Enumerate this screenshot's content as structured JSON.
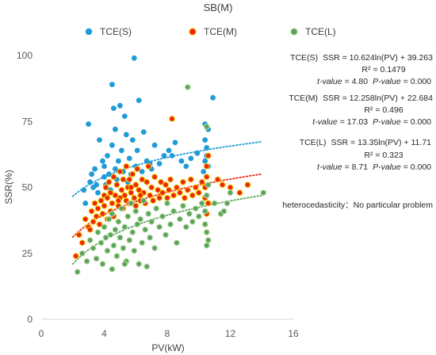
{
  "chart_data": {
    "type": "scatter",
    "title": "SB(M)",
    "xlabel": "PV(kW)",
    "ylabel": "SSR(%)",
    "xlim": [
      0,
      16
    ],
    "ylim": [
      0,
      100
    ],
    "xticks": [
      0,
      4,
      8,
      12,
      16
    ],
    "yticks": [
      0,
      25,
      50,
      75,
      100
    ],
    "grid": "none",
    "legend_position": "top",
    "series": [
      {
        "name": "TCE(S)",
        "color": "#1f9bd7",
        "trendline": {
          "a": 10.624,
          "b": 39.263,
          "x_range": [
            2.0,
            14.0
          ]
        },
        "points": [
          [
            2.7,
            49
          ],
          [
            2.8,
            44
          ],
          [
            3.0,
            74
          ],
          [
            3.1,
            52
          ],
          [
            3.2,
            55
          ],
          [
            3.3,
            50
          ],
          [
            3.4,
            57
          ],
          [
            3.5,
            51
          ],
          [
            3.6,
            48
          ],
          [
            3.7,
            68
          ],
          [
            3.8,
            45
          ],
          [
            3.9,
            60
          ],
          [
            4.0,
            54
          ],
          [
            4.0,
            58
          ],
          [
            4.1,
            51
          ],
          [
            4.2,
            62
          ],
          [
            4.3,
            55
          ],
          [
            4.4,
            49
          ],
          [
            4.5,
            89
          ],
          [
            4.5,
            66
          ],
          [
            4.6,
            80
          ],
          [
            4.7,
            72
          ],
          [
            4.7,
            57
          ],
          [
            4.8,
            53
          ],
          [
            4.9,
            60
          ],
          [
            5.0,
            81
          ],
          [
            5.1,
            64
          ],
          [
            5.2,
            56
          ],
          [
            5.3,
            77
          ],
          [
            5.4,
            70
          ],
          [
            5.5,
            52
          ],
          [
            5.6,
            61
          ],
          [
            5.7,
            55
          ],
          [
            5.8,
            68
          ],
          [
            5.9,
            99
          ],
          [
            6.0,
            58
          ],
          [
            6.1,
            64
          ],
          [
            6.2,
            83
          ],
          [
            6.4,
            56
          ],
          [
            6.5,
            71
          ],
          [
            6.7,
            60
          ],
          [
            6.9,
            59
          ],
          [
            7.0,
            57
          ],
          [
            7.2,
            66
          ],
          [
            7.5,
            59
          ],
          [
            7.8,
            62
          ],
          [
            8.1,
            64
          ],
          [
            8.3,
            62
          ],
          [
            8.5,
            67
          ],
          [
            8.9,
            60
          ],
          [
            9.2,
            58
          ],
          [
            9.5,
            61
          ],
          [
            9.9,
            63
          ],
          [
            10.3,
            56
          ],
          [
            10.4,
            74
          ],
          [
            10.4,
            68
          ],
          [
            10.5,
            65
          ],
          [
            10.5,
            62
          ],
          [
            10.6,
            72
          ],
          [
            10.9,
            84
          ],
          [
            10.6,
            58
          ],
          [
            10.4,
            60
          ]
        ]
      },
      {
        "name": "TCE(M)",
        "color": "#e8280e",
        "edge": "#ffcc00",
        "trendline": {
          "a": 12.258,
          "b": 22.684,
          "x_range": [
            2.0,
            14.0
          ]
        },
        "points": [
          [
            2.4,
            32
          ],
          [
            2.6,
            29
          ],
          [
            2.8,
            38
          ],
          [
            3.0,
            35
          ],
          [
            3.2,
            41
          ],
          [
            3.3,
            37
          ],
          [
            3.4,
            44
          ],
          [
            3.5,
            39
          ],
          [
            3.6,
            42
          ],
          [
            3.7,
            36
          ],
          [
            3.8,
            45
          ],
          [
            3.9,
            40
          ],
          [
            4.0,
            47
          ],
          [
            4.0,
            43
          ],
          [
            4.1,
            50
          ],
          [
            4.2,
            38
          ],
          [
            4.2,
            46
          ],
          [
            4.3,
            52
          ],
          [
            4.4,
            41
          ],
          [
            4.4,
            48
          ],
          [
            4.5,
            44
          ],
          [
            4.6,
            54
          ],
          [
            4.6,
            39
          ],
          [
            4.7,
            47
          ],
          [
            4.8,
            51
          ],
          [
            4.9,
            43
          ],
          [
            5.0,
            56
          ],
          [
            5.0,
            46
          ],
          [
            5.1,
            49
          ],
          [
            5.2,
            42
          ],
          [
            5.2,
            53
          ],
          [
            5.3,
            47
          ],
          [
            5.4,
            58
          ],
          [
            5.4,
            45
          ],
          [
            5.5,
            50
          ],
          [
            5.6,
            44
          ],
          [
            5.6,
            53
          ],
          [
            5.7,
            48
          ],
          [
            5.8,
            55
          ],
          [
            5.9,
            46
          ],
          [
            6.0,
            51
          ],
          [
            6.0,
            43
          ],
          [
            6.1,
            57
          ],
          [
            6.2,
            49
          ],
          [
            6.3,
            45
          ],
          [
            6.4,
            53
          ],
          [
            6.5,
            48
          ],
          [
            6.6,
            44
          ],
          [
            6.7,
            52
          ],
          [
            6.8,
            58
          ],
          [
            6.9,
            47
          ],
          [
            7.0,
            50
          ],
          [
            7.1,
            45
          ],
          [
            7.2,
            54
          ],
          [
            7.4,
            49
          ],
          [
            7.5,
            46
          ],
          [
            7.6,
            52
          ],
          [
            7.7,
            48
          ],
          [
            7.9,
            51
          ],
          [
            8.0,
            46
          ],
          [
            8.1,
            49
          ],
          [
            8.2,
            53
          ],
          [
            8.3,
            76
          ],
          [
            8.4,
            47
          ],
          [
            8.6,
            50
          ],
          [
            8.8,
            48
          ],
          [
            9.0,
            52
          ],
          [
            9.1,
            46
          ],
          [
            9.3,
            49
          ],
          [
            9.5,
            53
          ],
          [
            9.6,
            47
          ],
          [
            9.8,
            50
          ],
          [
            10.0,
            48
          ],
          [
            10.2,
            52
          ],
          [
            10.4,
            46
          ],
          [
            10.4,
            50
          ],
          [
            10.5,
            54
          ],
          [
            10.5,
            58
          ],
          [
            10.6,
            44
          ],
          [
            10.6,
            62
          ],
          [
            10.5,
            40
          ],
          [
            10.4,
            36
          ],
          [
            10.5,
            33
          ],
          [
            10.6,
            30
          ],
          [
            11.2,
            53
          ],
          [
            11.5,
            51
          ],
          [
            12.0,
            50
          ],
          [
            12.6,
            48
          ],
          [
            13.1,
            51
          ],
          [
            4.9,
            45
          ],
          [
            5.7,
            50
          ],
          [
            6.3,
            47
          ],
          [
            3.1,
            34
          ],
          [
            2.2,
            24
          ]
        ]
      },
      {
        "name": "TCE(L)",
        "color": "#5ba55b",
        "edge": "#c6e0b4",
        "trendline": {
          "a": 13.35,
          "b": 11.71,
          "x_range": [
            2.0,
            14.0
          ]
        },
        "points": [
          [
            2.3,
            18
          ],
          [
            2.6,
            25
          ],
          [
            2.9,
            22
          ],
          [
            3.1,
            30
          ],
          [
            3.3,
            27
          ],
          [
            3.5,
            23
          ],
          [
            3.6,
            33
          ],
          [
            3.8,
            29
          ],
          [
            3.9,
            21
          ],
          [
            4.0,
            35
          ],
          [
            4.1,
            31
          ],
          [
            4.2,
            26
          ],
          [
            4.3,
            38
          ],
          [
            4.4,
            32
          ],
          [
            4.5,
            19
          ],
          [
            4.5,
            40
          ],
          [
            4.6,
            28
          ],
          [
            4.7,
            34
          ],
          [
            4.8,
            24
          ],
          [
            4.9,
            37
          ],
          [
            5.0,
            31
          ],
          [
            5.1,
            42
          ],
          [
            5.2,
            27
          ],
          [
            5.3,
            35
          ],
          [
            5.4,
            22
          ],
          [
            5.5,
            39
          ],
          [
            5.6,
            30
          ],
          [
            5.7,
            44
          ],
          [
            5.8,
            33
          ],
          [
            5.9,
            26
          ],
          [
            6.0,
            41
          ],
          [
            6.1,
            36
          ],
          [
            6.2,
            21
          ],
          [
            6.3,
            38
          ],
          [
            6.4,
            29
          ],
          [
            6.5,
            45
          ],
          [
            6.6,
            34
          ],
          [
            6.8,
            40
          ],
          [
            6.9,
            31
          ],
          [
            7.0,
            37
          ],
          [
            7.2,
            27
          ],
          [
            7.3,
            42
          ],
          [
            7.5,
            35
          ],
          [
            7.7,
            39
          ],
          [
            7.9,
            32
          ],
          [
            8.0,
            44
          ],
          [
            8.2,
            36
          ],
          [
            8.4,
            41
          ],
          [
            8.6,
            29
          ],
          [
            8.8,
            38
          ],
          [
            9.0,
            43
          ],
          [
            9.2,
            35
          ],
          [
            9.3,
            88
          ],
          [
            9.4,
            40
          ],
          [
            9.6,
            37
          ],
          [
            9.8,
            42
          ],
          [
            10.0,
            39
          ],
          [
            10.2,
            44
          ],
          [
            10.4,
            36
          ],
          [
            10.4,
            41
          ],
          [
            10.5,
            47
          ],
          [
            10.5,
            33
          ],
          [
            10.6,
            30
          ],
          [
            10.5,
            28
          ],
          [
            10.6,
            51
          ],
          [
            10.5,
            73
          ],
          [
            11.0,
            44
          ],
          [
            11.4,
            40
          ],
          [
            11.8,
            44
          ],
          [
            12.0,
            48
          ],
          [
            14.1,
            48
          ],
          [
            11.6,
            41
          ],
          [
            6.7,
            20
          ],
          [
            5.3,
            21
          ]
        ]
      }
    ],
    "annotations": {
      "s": {
        "eq_label": "TCE(S)",
        "eq": "SSR = 10.624ln(PV) + 39.263",
        "r2": "R² = 0.1479",
        "t_label": "t-value",
        "t_val": "= 4.80",
        "p_label": "P-value",
        "p_val": "= 0.000"
      },
      "m": {
        "eq_label": "TCE(M)",
        "eq": "SSR = 12.258ln(PV) + 22.684",
        "r2": "R² = 0.496",
        "t_label": "t-value",
        "t_val": "= 17.03",
        "p_label": "P-value",
        "p_val": "= 0.000"
      },
      "l": {
        "eq_label": "TCE(L)",
        "eq": "SSR = 13.35ln(PV) + 11.71",
        "r2": "R² = 0.323",
        "t_label": "t-value",
        "t_val": "= 8.71",
        "p_label": "P-value",
        "p_val": "= 0.000"
      }
    },
    "note": "heterocedasticity：No particular problem"
  }
}
